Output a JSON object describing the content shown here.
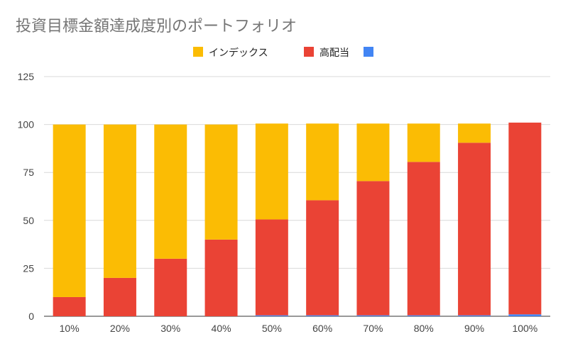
{
  "chart_data": {
    "type": "bar",
    "stacked": true,
    "title": "投資目標金額達成度別のポートフォリオ",
    "xlabel": "",
    "ylabel": "",
    "ylim": [
      0,
      125
    ],
    "yticks": [
      0,
      25,
      50,
      75,
      100,
      125
    ],
    "grid": true,
    "legend_position": "top",
    "categories": [
      "10%",
      "20%",
      "30%",
      "40%",
      "50%",
      "60%",
      "70%",
      "80%",
      "90%",
      "100%"
    ],
    "series": [
      {
        "name": "",
        "color": "#4285f4",
        "values": [
          0,
          0,
          0,
          0,
          0.5,
          0.5,
          0.5,
          0.5,
          0.5,
          1
        ]
      },
      {
        "name": "高配当",
        "color": "#ea4335",
        "values": [
          10,
          20,
          30,
          40,
          50,
          60,
          70,
          80,
          90,
          100
        ]
      },
      {
        "name": "インデックス",
        "color": "#fbbc04",
        "values": [
          90,
          80,
          70,
          60,
          50,
          40,
          30,
          20,
          10,
          0
        ]
      }
    ],
    "legend": [
      {
        "name": "インデックス",
        "color": "#fbbc04"
      },
      {
        "name": "高配当",
        "color": "#ea4335"
      },
      {
        "name": "",
        "color": "#4285f4"
      }
    ]
  }
}
